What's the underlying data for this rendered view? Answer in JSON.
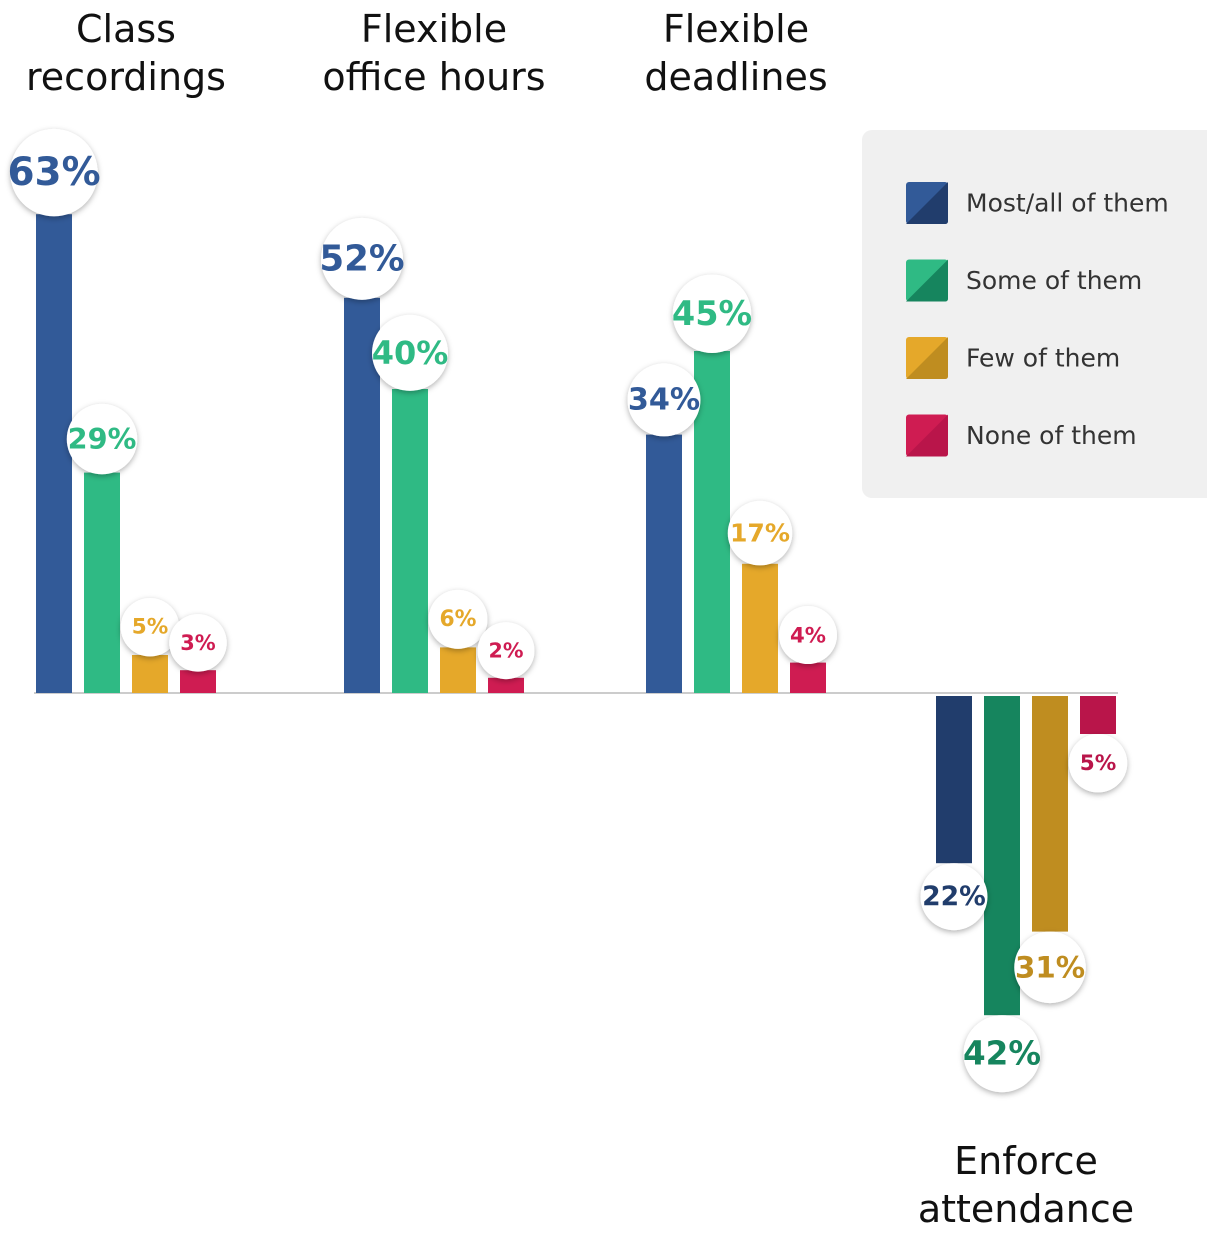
{
  "chart_data": {
    "type": "bar",
    "categories": [
      "Class recordings",
      "Flexible office hours",
      "Flexible deadlines",
      "Enforce attendance"
    ],
    "direction": [
      "up",
      "up",
      "up",
      "down"
    ],
    "series": [
      {
        "name": "Most/all of them",
        "color": "#325a98",
        "color_down": "#213d6c",
        "values": [
          63,
          52,
          34,
          22
        ],
        "value_labels": [
          "63%",
          "52%",
          "34%",
          "22%"
        ]
      },
      {
        "name": "Some of them",
        "color": "#2fba84",
        "color_down": "#16855e",
        "values": [
          29,
          40,
          45,
          42
        ],
        "value_labels": [
          "29%",
          "40%",
          "45%",
          "42%"
        ]
      },
      {
        "name": "Few of them",
        "color": "#e5a82a",
        "color_down": "#bf8d20",
        "values": [
          5,
          6,
          17,
          31
        ],
        "value_labels": [
          "5%",
          "6%",
          "17%",
          "31%"
        ]
      },
      {
        "name": "None of them",
        "color": "#cf1c52",
        "color_down": "#b9154a",
        "values": [
          3,
          2,
          4,
          5
        ],
        "value_labels": [
          "3%",
          "2%",
          "4%",
          "5%"
        ]
      }
    ],
    "legend": "upper right"
  }
}
